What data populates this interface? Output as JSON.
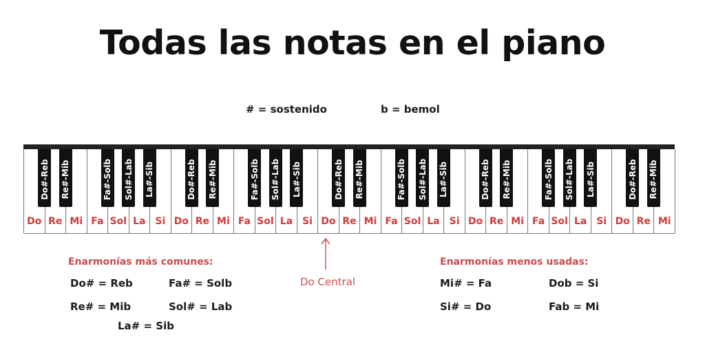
{
  "title": "Todas las notas en el piano",
  "legend": {
    "sharp": "# = sostenido",
    "flat": "b = bemol"
  },
  "white_keys": [
    "Do",
    "Re",
    "Mi",
    "Fa",
    "Sol",
    "La",
    "Si",
    "Do",
    "Re",
    "Mi",
    "Fa",
    "Sol",
    "La",
    "Si",
    "Do",
    "Re",
    "Mi",
    "Fa",
    "Sol",
    "La",
    "Si",
    "Do",
    "Re",
    "Mi",
    "Fa",
    "Sol",
    "La",
    "Si",
    "Do",
    "Re",
    "Mi"
  ],
  "black_keys": [
    "Do#-Reb",
    "Re#-Mib",
    "Fa#-Solb",
    "Sol#-Lab",
    "La#-Sib",
    "Do#-Reb",
    "Re#-Mib",
    "Fa#-Solb",
    "Sol#-Lab",
    "La#-Sib",
    "Do#-Reb",
    "Re#-Mib",
    "Fa#-Solb",
    "Sol#-Lab",
    "La#-Sib",
    "Do#-Reb",
    "Re#-Mib",
    "Fa#-Solb",
    "Sol#-Lab",
    "La#-Sib",
    "Do#-Reb",
    "Re#-Mib"
  ],
  "middle_c_label": "Do Central",
  "common": {
    "heading": "Enarmonías más comunes:",
    "items": [
      "Do# = Reb",
      "Fa# = Solb",
      "Re# = Mib",
      "Sol# = Lab",
      "La# = Sib"
    ]
  },
  "less_used": {
    "heading": "Enarmonías menos usadas:",
    "items": [
      "Mi# = Fa",
      "Dob = Si",
      "Si# = Do",
      "Fab = Mi"
    ]
  },
  "colors": {
    "note_red": "#d03b3b",
    "heading_red": "#cc4a4a",
    "black_key": "#111111"
  }
}
